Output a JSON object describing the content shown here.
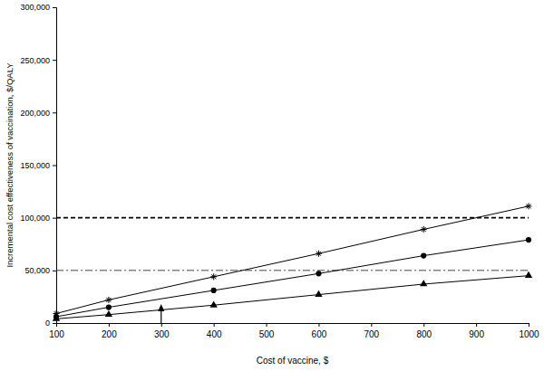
{
  "chart_data": {
    "type": "line",
    "x_label": "Cost of vaccine, $",
    "y_label": "Incremental cost effectiveness of vaccination, $/QALY",
    "x": [
      100,
      200,
      400,
      600,
      800,
      1000
    ],
    "series": [
      {
        "color": "#000000",
        "marker": "star",
        "values": [
          9000,
          22000,
          44000,
          66000,
          89000,
          111000
        ]
      },
      {
        "color": "#000000",
        "marker": "circle",
        "values": [
          6000,
          15000,
          31000,
          47000,
          64000,
          79000
        ]
      },
      {
        "color": "#000000",
        "marker": "triangle",
        "values": [
          4000,
          8000,
          17000,
          27000,
          37000,
          45000
        ]
      }
    ],
    "xlim": [
      100,
      1000
    ],
    "xticks": [
      100,
      200,
      300,
      400,
      500,
      600,
      700,
      800,
      900,
      1000
    ],
    "ylim": [
      0,
      300000
    ],
    "yticks": [
      0,
      {
        "value": 50000,
        "label": "50,000"
      },
      {
        "value": 100000,
        "label": "100,000"
      },
      {
        "value": 150000,
        "label": "150,000"
      },
      {
        "value": 200000,
        "label": "200,000"
      },
      {
        "value": 250000,
        "label": "250,000"
      },
      {
        "value": 300000,
        "label": "300,000"
      }
    ],
    "reference_lines": [
      100000,
      50000
    ],
    "arrow": {
      "x": 300,
      "y_from": 0,
      "y_to": 18000
    },
    "grid": false
  }
}
